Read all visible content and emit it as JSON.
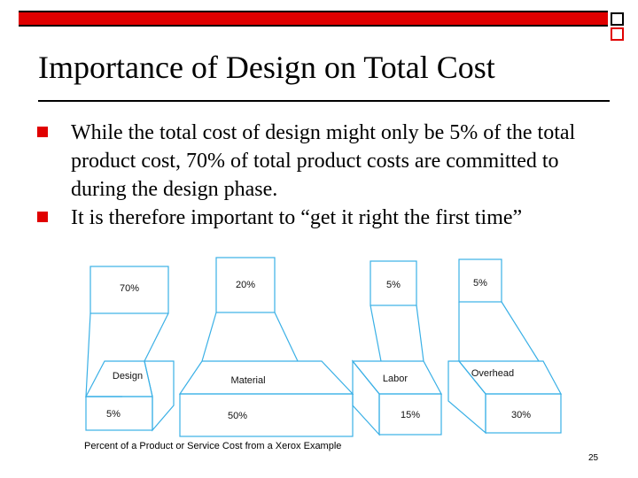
{
  "slide": {
    "title": "Importance of Design on Total Cost",
    "bullets": [
      "While the total cost of design might only be 5% of the total product cost, 70% of total product costs are committed to during the design phase.",
      "It is therefore important to “get it right the first time”"
    ],
    "page_number": "25"
  },
  "figure": {
    "caption": "Percent of a Product or Service Cost from a Xerox Example",
    "categories": [
      {
        "name": "Design",
        "committed": "70%",
        "actual": "5%"
      },
      {
        "name": "Material",
        "committed": "20%",
        "actual": "50%"
      },
      {
        "name": "Labor",
        "committed": "5%",
        "actual": "15%"
      },
      {
        "name": "Overhead",
        "committed": "5%",
        "actual": "30%"
      }
    ]
  },
  "colors": {
    "accent": "#e00000",
    "figure_line": "#3ab0e6"
  }
}
